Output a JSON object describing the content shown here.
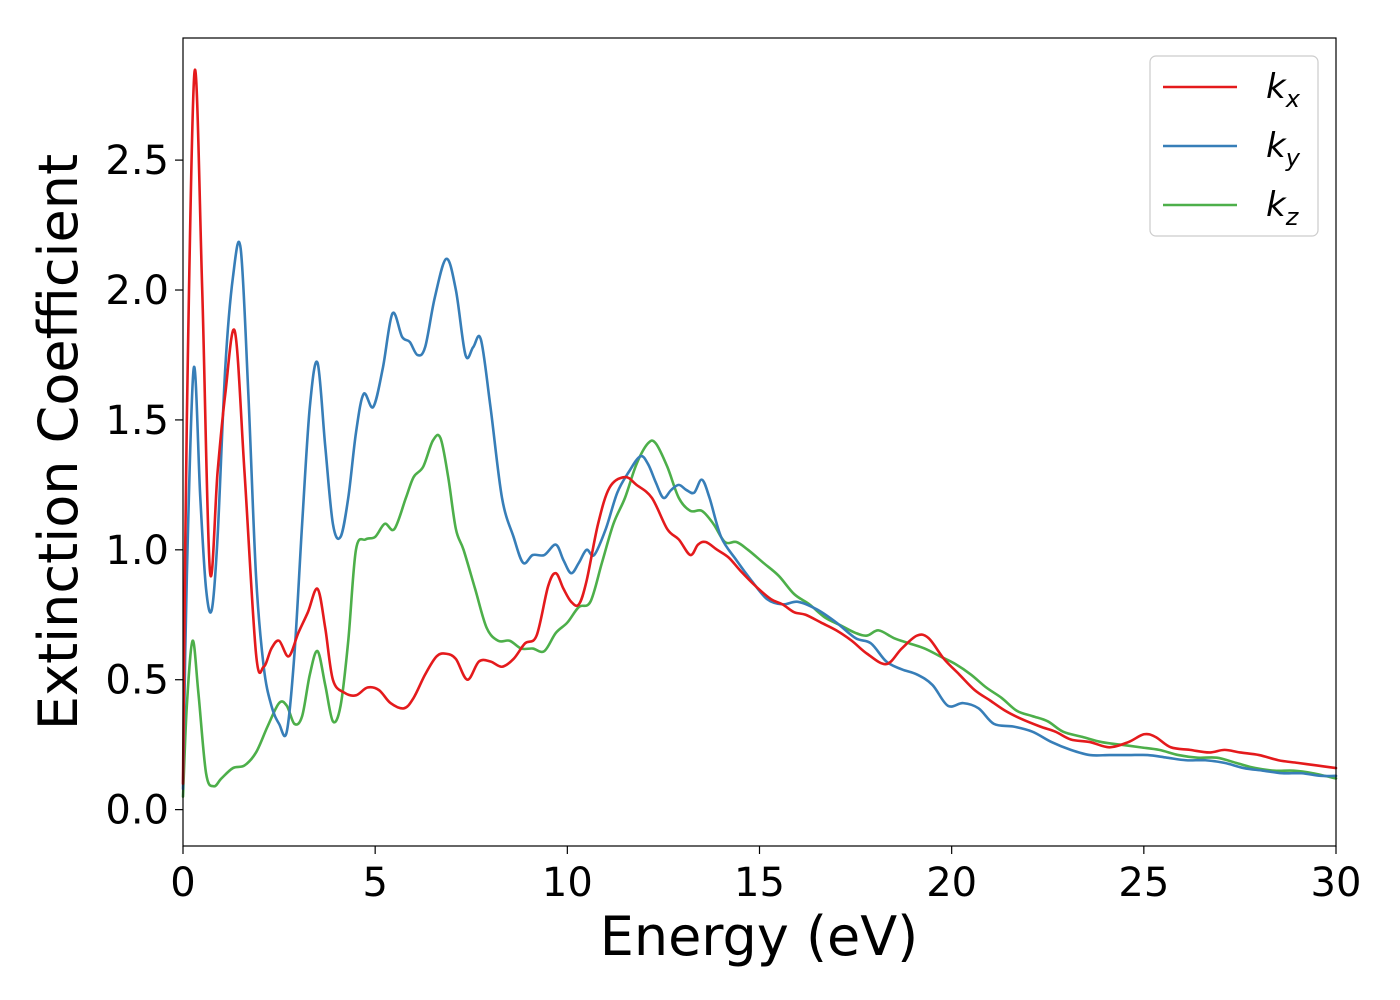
{
  "chart_data": {
    "type": "line",
    "xlabel": "Energy (eV)",
    "ylabel": "Extinction Coefficient",
    "xlim": [
      0,
      30
    ],
    "ylim": [
      -0.14,
      2.97
    ],
    "xticks": [
      0,
      5,
      10,
      15,
      20,
      25,
      30
    ],
    "xtick_labels": [
      "0",
      "5",
      "10",
      "15",
      "20",
      "25",
      "30"
    ],
    "yticks": [
      0.0,
      0.5,
      1.0,
      1.5,
      2.0,
      2.5
    ],
    "ytick_labels": [
      "0.0",
      "0.5",
      "1.0",
      "1.5",
      "2.0",
      "2.5"
    ],
    "grid": false,
    "legend_position": "top-right",
    "series": [
      {
        "name": "k",
        "subscript": "x",
        "color": "#e41a1c",
        "x": [
          0,
          0.1,
          0.3,
          0.5,
          0.7,
          0.9,
          1.1,
          1.35,
          1.6,
          1.9,
          2.1,
          2.3,
          2.5,
          2.75,
          3.0,
          3.25,
          3.5,
          3.7,
          3.9,
          4.2,
          4.5,
          4.8,
          5.1,
          5.4,
          5.75,
          6.0,
          6.3,
          6.6,
          6.85,
          7.1,
          7.4,
          7.7,
          8.0,
          8.3,
          8.6,
          8.9,
          9.2,
          9.5,
          9.7,
          9.9,
          10.1,
          10.3,
          10.5,
          10.8,
          11.1,
          11.5,
          11.8,
          12.2,
          12.6,
          12.9,
          13.2,
          13.4,
          13.6,
          13.9,
          14.2,
          14.5,
          14.9,
          15.3,
          15.6,
          15.9,
          16.2,
          16.6,
          17.0,
          17.4,
          17.8,
          18.3,
          18.7,
          19.1,
          19.4,
          19.8,
          20.2,
          20.6,
          21.0,
          21.4,
          21.8,
          22.3,
          22.7,
          23.1,
          23.6,
          24.1,
          24.6,
          25.0,
          25.3,
          25.7,
          26.2,
          26.7,
          27.1,
          27.5,
          28.0,
          28.5,
          29.0,
          29.5,
          30.0
        ],
        "y": [
          0.1,
          1.5,
          2.84,
          2.0,
          0.92,
          1.3,
          1.6,
          1.84,
          1.3,
          0.6,
          0.55,
          0.62,
          0.65,
          0.59,
          0.68,
          0.76,
          0.85,
          0.7,
          0.5,
          0.45,
          0.44,
          0.47,
          0.46,
          0.41,
          0.39,
          0.43,
          0.52,
          0.59,
          0.6,
          0.58,
          0.5,
          0.57,
          0.57,
          0.55,
          0.58,
          0.64,
          0.67,
          0.86,
          0.91,
          0.85,
          0.8,
          0.79,
          0.88,
          1.1,
          1.24,
          1.28,
          1.25,
          1.2,
          1.08,
          1.04,
          0.98,
          1.02,
          1.03,
          1.0,
          0.97,
          0.92,
          0.86,
          0.81,
          0.79,
          0.76,
          0.75,
          0.72,
          0.69,
          0.65,
          0.6,
          0.56,
          0.62,
          0.67,
          0.66,
          0.58,
          0.52,
          0.46,
          0.42,
          0.38,
          0.35,
          0.32,
          0.3,
          0.27,
          0.26,
          0.24,
          0.26,
          0.29,
          0.28,
          0.24,
          0.23,
          0.22,
          0.23,
          0.22,
          0.21,
          0.19,
          0.18,
          0.17,
          0.16
        ]
      },
      {
        "name": "k",
        "subscript": "y",
        "color": "#377eb8",
        "x": [
          0,
          0.1,
          0.28,
          0.45,
          0.6,
          0.75,
          0.9,
          1.1,
          1.3,
          1.5,
          1.7,
          1.9,
          2.1,
          2.3,
          2.5,
          2.7,
          2.9,
          3.1,
          3.3,
          3.5,
          3.7,
          3.9,
          4.1,
          4.3,
          4.5,
          4.7,
          4.95,
          5.2,
          5.45,
          5.7,
          5.9,
          6.1,
          6.3,
          6.55,
          6.85,
          7.1,
          7.35,
          7.55,
          7.75,
          8.0,
          8.3,
          8.6,
          8.85,
          9.1,
          9.4,
          9.7,
          9.9,
          10.1,
          10.3,
          10.5,
          10.7,
          11.0,
          11.3,
          11.6,
          11.9,
          12.1,
          12.3,
          12.5,
          12.7,
          12.9,
          13.1,
          13.3,
          13.5,
          13.7,
          14.0,
          14.4,
          14.8,
          15.2,
          15.6,
          16.0,
          16.5,
          17.0,
          17.5,
          17.9,
          18.3,
          18.7,
          19.1,
          19.5,
          19.9,
          20.3,
          20.7,
          21.1,
          21.6,
          22.1,
          22.6,
          23.1,
          23.6,
          24.1,
          24.6,
          25.1,
          25.6,
          26.1,
          26.6,
          27.1,
          27.6,
          28.1,
          28.6,
          29.1,
          29.6,
          30.0
        ],
        "y": [
          0.08,
          0.9,
          1.7,
          1.2,
          0.85,
          0.77,
          1.05,
          1.7,
          2.05,
          2.16,
          1.6,
          0.9,
          0.55,
          0.4,
          0.33,
          0.3,
          0.6,
          1.1,
          1.55,
          1.72,
          1.4,
          1.1,
          1.05,
          1.2,
          1.45,
          1.6,
          1.55,
          1.7,
          1.91,
          1.82,
          1.8,
          1.75,
          1.78,
          1.97,
          2.12,
          2.0,
          1.75,
          1.78,
          1.81,
          1.55,
          1.2,
          1.05,
          0.95,
          0.98,
          0.98,
          1.02,
          0.96,
          0.91,
          0.95,
          1.0,
          0.98,
          1.08,
          1.22,
          1.3,
          1.36,
          1.33,
          1.26,
          1.2,
          1.23,
          1.25,
          1.23,
          1.22,
          1.27,
          1.2,
          1.05,
          0.96,
          0.88,
          0.81,
          0.79,
          0.8,
          0.77,
          0.72,
          0.66,
          0.64,
          0.57,
          0.54,
          0.52,
          0.48,
          0.4,
          0.41,
          0.39,
          0.33,
          0.32,
          0.3,
          0.26,
          0.23,
          0.21,
          0.21,
          0.21,
          0.21,
          0.2,
          0.19,
          0.19,
          0.18,
          0.16,
          0.15,
          0.14,
          0.14,
          0.13,
          0.13
        ]
      },
      {
        "name": "k",
        "subscript": "z",
        "color": "#4daf4a",
        "x": [
          0,
          0.1,
          0.25,
          0.4,
          0.6,
          0.8,
          1.0,
          1.3,
          1.6,
          1.9,
          2.2,
          2.5,
          2.7,
          2.9,
          3.1,
          3.3,
          3.5,
          3.7,
          3.9,
          4.1,
          4.3,
          4.5,
          4.75,
          5.0,
          5.25,
          5.5,
          5.8,
          6.0,
          6.25,
          6.5,
          6.7,
          6.9,
          7.1,
          7.3,
          7.6,
          7.9,
          8.2,
          8.5,
          8.8,
          9.1,
          9.4,
          9.7,
          10.0,
          10.3,
          10.6,
          10.9,
          11.2,
          11.5,
          11.8,
          12.1,
          12.3,
          12.6,
          12.9,
          13.2,
          13.5,
          13.8,
          14.1,
          14.4,
          14.7,
          15.1,
          15.5,
          15.9,
          16.3,
          16.7,
          17.1,
          17.5,
          17.8,
          18.1,
          18.5,
          18.9,
          19.3,
          19.7,
          20.1,
          20.5,
          20.9,
          21.3,
          21.7,
          22.1,
          22.5,
          22.9,
          23.4,
          23.9,
          24.4,
          24.9,
          25.4,
          25.9,
          26.4,
          26.9,
          27.4,
          27.9,
          28.4,
          28.9,
          29.4,
          30.0
        ],
        "y": [
          0.05,
          0.4,
          0.65,
          0.45,
          0.14,
          0.09,
          0.12,
          0.16,
          0.17,
          0.22,
          0.32,
          0.41,
          0.4,
          0.33,
          0.36,
          0.52,
          0.61,
          0.48,
          0.34,
          0.4,
          0.65,
          1.0,
          1.04,
          1.05,
          1.1,
          1.08,
          1.2,
          1.28,
          1.32,
          1.42,
          1.43,
          1.28,
          1.08,
          1.0,
          0.85,
          0.7,
          0.65,
          0.65,
          0.62,
          0.62,
          0.61,
          0.68,
          0.72,
          0.78,
          0.8,
          0.95,
          1.1,
          1.2,
          1.33,
          1.41,
          1.41,
          1.32,
          1.2,
          1.15,
          1.15,
          1.1,
          1.03,
          1.03,
          1.0,
          0.95,
          0.9,
          0.83,
          0.79,
          0.74,
          0.71,
          0.68,
          0.67,
          0.69,
          0.66,
          0.64,
          0.62,
          0.59,
          0.56,
          0.52,
          0.47,
          0.43,
          0.38,
          0.36,
          0.34,
          0.3,
          0.28,
          0.26,
          0.25,
          0.24,
          0.23,
          0.21,
          0.2,
          0.2,
          0.18,
          0.16,
          0.15,
          0.15,
          0.14,
          0.12
        ]
      }
    ]
  }
}
